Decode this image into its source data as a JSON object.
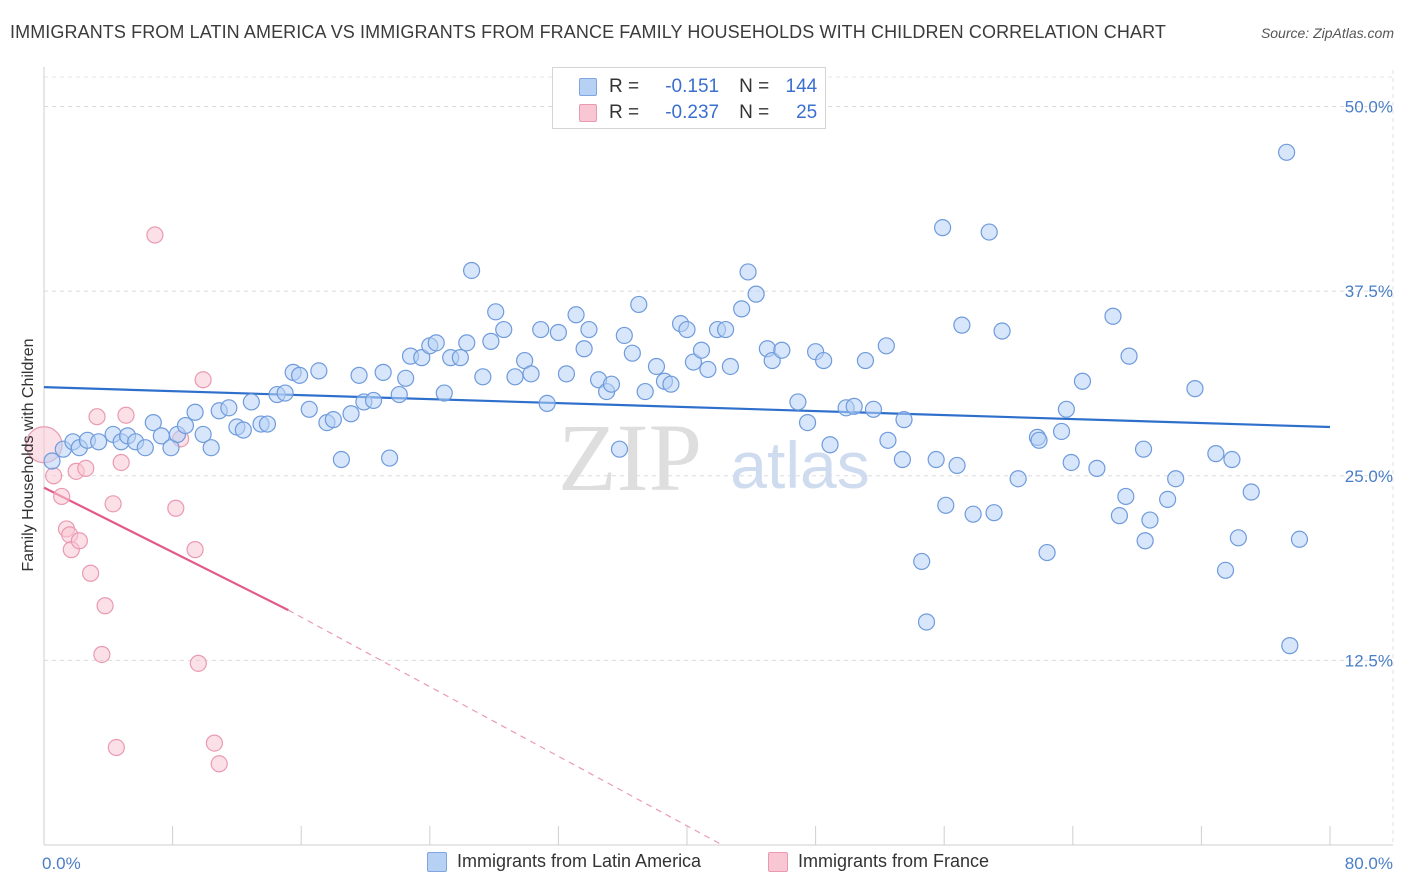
{
  "title": "IMMIGRANTS FROM LATIN AMERICA VS IMMIGRANTS FROM FRANCE FAMILY HOUSEHOLDS WITH CHILDREN CORRELATION CHART",
  "source": "Source: ZipAtlas.com",
  "watermark": {
    "zip": "ZIP",
    "atlas": "atlas"
  },
  "legend": {
    "r_label": "R =",
    "n_label": "N =",
    "rows": [
      {
        "r": "-0.151",
        "n": "144",
        "fill": "#b7d1f5",
        "stroke": "#7fa6e0"
      },
      {
        "r": "-0.237",
        "n": "25",
        "fill": "#f9c6d4",
        "stroke": "#e99ab2"
      }
    ]
  },
  "bottom_legend": [
    {
      "label": "Immigrants from Latin America",
      "fill": "#b7d1f5",
      "stroke": "#7fa6e0"
    },
    {
      "label": "Immigrants from France",
      "fill": "#f9c6d4",
      "stroke": "#e99ab2"
    }
  ],
  "chart_data": {
    "type": "scatter",
    "title": "IMMIGRANTS FROM LATIN AMERICA VS IMMIGRANTS FROM FRANCE FAMILY HOUSEHOLDS WITH CHILDREN CORRELATION CHART",
    "xlabel": "",
    "ylabel": "Family Households with Children",
    "xlim": [
      0,
      80
    ],
    "ylim": [
      0,
      52
    ],
    "x_tick_labels": [
      "0.0%",
      "80.0%"
    ],
    "y_ticks": [
      12.5,
      25.0,
      37.5,
      50.0
    ],
    "y_tick_labels": [
      "12.5%",
      "25.0%",
      "37.5%",
      "50.0%"
    ],
    "grid": true,
    "legend_position": "top-center",
    "colors": {
      "latin_america": "#4a86d8",
      "france": "#e8759c",
      "latin_trend": "#2f6fcc",
      "france_trend": "#e35a8a"
    },
    "series": [
      {
        "name": "Immigrants from Latin America",
        "R": -0.151,
        "N": 144,
        "trend": {
          "x": [
            0,
            80
          ],
          "y": [
            31.0,
            28.3
          ]
        },
        "points": [
          [
            0.5,
            26.0
          ],
          [
            1.2,
            26.8
          ],
          [
            1.8,
            27.3
          ],
          [
            2.2,
            26.9
          ],
          [
            2.7,
            27.4
          ],
          [
            3.4,
            27.3
          ],
          [
            4.3,
            27.8
          ],
          [
            4.8,
            27.3
          ],
          [
            5.2,
            27.7
          ],
          [
            5.7,
            27.3
          ],
          [
            6.3,
            26.9
          ],
          [
            6.8,
            28.6
          ],
          [
            7.3,
            27.7
          ],
          [
            7.9,
            26.9
          ],
          [
            8.3,
            27.8
          ],
          [
            8.8,
            28.4
          ],
          [
            9.4,
            29.3
          ],
          [
            9.9,
            27.8
          ],
          [
            10.4,
            26.9
          ],
          [
            10.9,
            29.4
          ],
          [
            11.5,
            29.6
          ],
          [
            12.0,
            28.3
          ],
          [
            12.4,
            28.1
          ],
          [
            12.9,
            30.0
          ],
          [
            13.5,
            28.5
          ],
          [
            13.9,
            28.5
          ],
          [
            14.5,
            30.5
          ],
          [
            15.0,
            30.6
          ],
          [
            15.5,
            32.0
          ],
          [
            15.9,
            31.8
          ],
          [
            16.5,
            29.5
          ],
          [
            17.1,
            32.1
          ],
          [
            17.6,
            28.6
          ],
          [
            18.0,
            28.8
          ],
          [
            18.5,
            26.1
          ],
          [
            19.1,
            29.2
          ],
          [
            19.6,
            31.8
          ],
          [
            19.9,
            30.0
          ],
          [
            20.5,
            30.1
          ],
          [
            21.1,
            32.0
          ],
          [
            21.5,
            26.2
          ],
          [
            22.1,
            30.5
          ],
          [
            22.5,
            31.6
          ],
          [
            22.8,
            33.1
          ],
          [
            23.5,
            33.0
          ],
          [
            24.0,
            33.8
          ],
          [
            24.4,
            34.0
          ],
          [
            24.9,
            30.6
          ],
          [
            25.3,
            33.0
          ],
          [
            25.9,
            33.0
          ],
          [
            26.3,
            34.0
          ],
          [
            26.6,
            38.9
          ],
          [
            27.3,
            31.7
          ],
          [
            27.8,
            34.1
          ],
          [
            28.1,
            36.1
          ],
          [
            28.6,
            34.9
          ],
          [
            29.3,
            31.7
          ],
          [
            29.9,
            32.8
          ],
          [
            30.3,
            31.9
          ],
          [
            30.9,
            34.9
          ],
          [
            31.3,
            29.9
          ],
          [
            32.0,
            34.7
          ],
          [
            32.5,
            31.9
          ],
          [
            33.1,
            35.9
          ],
          [
            33.6,
            33.6
          ],
          [
            33.9,
            34.9
          ],
          [
            34.5,
            31.5
          ],
          [
            35.0,
            30.7
          ],
          [
            35.3,
            31.2
          ],
          [
            35.8,
            26.8
          ],
          [
            36.1,
            34.5
          ],
          [
            36.6,
            33.3
          ],
          [
            37.0,
            36.6
          ],
          [
            37.4,
            30.7
          ],
          [
            38.1,
            32.4
          ],
          [
            38.6,
            31.4
          ],
          [
            39.0,
            31.2
          ],
          [
            39.6,
            35.3
          ],
          [
            40.0,
            34.9
          ],
          [
            40.4,
            32.7
          ],
          [
            40.9,
            33.5
          ],
          [
            41.3,
            32.2
          ],
          [
            41.9,
            34.9
          ],
          [
            42.4,
            34.9
          ],
          [
            42.7,
            32.4
          ],
          [
            43.4,
            36.3
          ],
          [
            43.8,
            38.8
          ],
          [
            44.3,
            37.3
          ],
          [
            45.0,
            33.6
          ],
          [
            45.3,
            32.8
          ],
          [
            45.9,
            33.5
          ],
          [
            46.9,
            30.0
          ],
          [
            48.0,
            33.4
          ],
          [
            47.5,
            28.6
          ],
          [
            48.5,
            32.8
          ],
          [
            48.9,
            27.1
          ],
          [
            49.9,
            29.6
          ],
          [
            50.4,
            29.7
          ],
          [
            51.1,
            32.8
          ],
          [
            51.6,
            29.5
          ],
          [
            52.4,
            33.8
          ],
          [
            52.5,
            27.4
          ],
          [
            53.5,
            28.8
          ],
          [
            53.4,
            26.1
          ],
          [
            54.6,
            19.2
          ],
          [
            54.9,
            15.1
          ],
          [
            55.5,
            26.1
          ],
          [
            55.9,
            41.8
          ],
          [
            56.1,
            23.0
          ],
          [
            56.8,
            25.7
          ],
          [
            57.1,
            35.2
          ],
          [
            57.8,
            22.4
          ],
          [
            58.8,
            41.5
          ],
          [
            59.1,
            22.5
          ],
          [
            59.6,
            34.8
          ],
          [
            60.6,
            24.8
          ],
          [
            61.8,
            27.6
          ],
          [
            61.9,
            27.4
          ],
          [
            62.4,
            19.8
          ],
          [
            63.3,
            28.0
          ],
          [
            63.6,
            29.5
          ],
          [
            63.9,
            25.9
          ],
          [
            64.6,
            31.4
          ],
          [
            65.5,
            25.5
          ],
          [
            66.5,
            35.8
          ],
          [
            66.9,
            22.3
          ],
          [
            67.3,
            23.6
          ],
          [
            67.5,
            33.1
          ],
          [
            68.4,
            26.8
          ],
          [
            68.5,
            20.6
          ],
          [
            68.8,
            22.0
          ],
          [
            69.9,
            23.4
          ],
          [
            70.4,
            24.8
          ],
          [
            71.6,
            30.9
          ],
          [
            72.9,
            26.5
          ],
          [
            73.5,
            18.6
          ],
          [
            73.9,
            26.1
          ],
          [
            74.3,
            20.8
          ],
          [
            75.1,
            23.9
          ],
          [
            77.5,
            13.5
          ],
          [
            77.3,
            46.9
          ],
          [
            78.1,
            20.7
          ]
        ]
      },
      {
        "name": "Immigrants from France",
        "R": -0.237,
        "N": 25,
        "trend": {
          "x": [
            0,
            15.2
          ],
          "y": [
            24.2,
            15.9
          ],
          "dashed_to": {
            "x": 42.2,
            "y": 0
          }
        },
        "points": [
          [
            0.0,
            27.1
          ],
          [
            0.6,
            25.0
          ],
          [
            1.1,
            23.6
          ],
          [
            1.4,
            21.4
          ],
          [
            1.6,
            21.0
          ],
          [
            1.7,
            20.0
          ],
          [
            2.0,
            25.3
          ],
          [
            2.2,
            20.6
          ],
          [
            2.6,
            25.5
          ],
          [
            2.9,
            18.4
          ],
          [
            3.3,
            29.0
          ],
          [
            3.6,
            12.9
          ],
          [
            3.8,
            16.2
          ],
          [
            4.3,
            23.1
          ],
          [
            4.5,
            6.6
          ],
          [
            4.8,
            25.9
          ],
          [
            5.1,
            29.1
          ],
          [
            6.9,
            41.3
          ],
          [
            8.2,
            22.8
          ],
          [
            8.5,
            27.5
          ],
          [
            9.4,
            20.0
          ],
          [
            9.6,
            12.3
          ],
          [
            9.9,
            31.5
          ],
          [
            10.6,
            6.9
          ],
          [
            10.9,
            5.5
          ]
        ]
      }
    ]
  }
}
